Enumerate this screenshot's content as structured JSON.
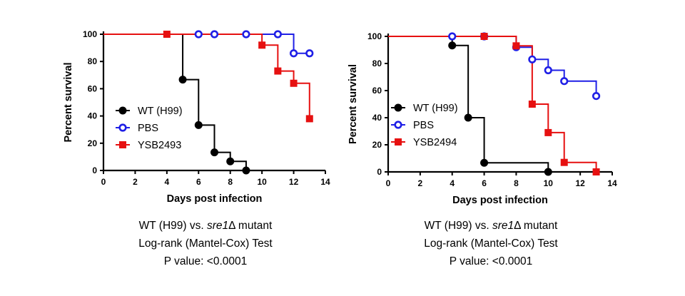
{
  "chart_data": [
    {
      "type": "line",
      "step": true,
      "xlabel": "Days post infection",
      "ylabel": "Percent survival",
      "xlim": [
        0,
        14
      ],
      "ylim": [
        0,
        100
      ],
      "xticks": [
        "0",
        "2",
        "4",
        "6",
        "8",
        "10",
        "12",
        "14"
      ],
      "yticks": [
        "0",
        "20",
        "40",
        "60",
        "80",
        "100"
      ],
      "legend_position": "left-middle",
      "series": [
        {
          "name": "WT (H99)",
          "color": "#000000",
          "marker": "filled-circle",
          "x": [
            0,
            5,
            6,
            7,
            8,
            9
          ],
          "y": [
            100,
            66.7,
            33.3,
            13.3,
            6.7,
            0
          ],
          "marked_points": [
            [
              5,
              66.7
            ],
            [
              6,
              33.3
            ],
            [
              7,
              13.3
            ],
            [
              8,
              6.7
            ],
            [
              9,
              0
            ]
          ]
        },
        {
          "name": "PBS",
          "color": "#1f1fe6",
          "marker": "open-circle",
          "x": [
            0,
            12,
            13
          ],
          "y": [
            100,
            86,
            86
          ],
          "marked_points": [
            [
              6,
              100
            ],
            [
              7,
              100
            ],
            [
              9,
              100
            ],
            [
              11,
              100
            ],
            [
              12,
              86
            ],
            [
              13,
              86
            ]
          ]
        },
        {
          "name": "YSB2493",
          "color": "#e61010",
          "marker": "filled-square",
          "x": [
            0,
            10,
            11,
            12,
            13
          ],
          "y": [
            100,
            92,
            73,
            64,
            38
          ],
          "marked_points": [
            [
              4,
              100
            ],
            [
              10,
              92
            ],
            [
              11,
              73
            ],
            [
              12,
              64
            ],
            [
              13,
              38
            ]
          ]
        }
      ],
      "caption": {
        "line1_prefix": "WT (H99) vs. ",
        "line1_italic": "sre1",
        "line1_suffix": "Δ mutant",
        "line2": "Log-rank (Mantel-Cox) Test",
        "line3": "P value: <0.0001"
      }
    },
    {
      "type": "line",
      "step": true,
      "xlabel": "Days post infection",
      "ylabel": "Percent survival",
      "xlim": [
        0,
        14
      ],
      "ylim": [
        0,
        100
      ],
      "xticks": [
        "0",
        "2",
        "4",
        "6",
        "8",
        "10",
        "12",
        "14"
      ],
      "yticks": [
        "0",
        "20",
        "40",
        "60",
        "80",
        "100"
      ],
      "legend_position": "left-middle",
      "series": [
        {
          "name": "WT (H99)",
          "color": "#000000",
          "marker": "filled-circle",
          "x": [
            0,
            4,
            5,
            6,
            10
          ],
          "y": [
            100,
            93.3,
            40,
            6.7,
            0
          ],
          "marked_points": [
            [
              4,
              93.3
            ],
            [
              5,
              40
            ],
            [
              6,
              6.7
            ],
            [
              10,
              0
            ]
          ]
        },
        {
          "name": "PBS",
          "color": "#1f1fe6",
          "marker": "open-circle",
          "x": [
            0,
            8,
            9,
            10,
            11,
            13
          ],
          "y": [
            100,
            92,
            83,
            75,
            67,
            56
          ],
          "marked_points": [
            [
              4,
              100
            ],
            [
              6,
              100
            ],
            [
              8,
              92
            ],
            [
              9,
              83
            ],
            [
              10,
              75
            ],
            [
              11,
              67
            ],
            [
              13,
              56
            ]
          ]
        },
        {
          "name": "YSB2494",
          "color": "#e61010",
          "marker": "filled-square",
          "x": [
            0,
            8,
            9,
            10,
            11,
            13
          ],
          "y": [
            100,
            93,
            50,
            29,
            7,
            0
          ],
          "marked_points": [
            [
              6,
              100
            ],
            [
              8,
              93
            ],
            [
              9,
              50
            ],
            [
              10,
              29
            ],
            [
              11,
              7
            ],
            [
              13,
              0
            ]
          ]
        }
      ],
      "caption": {
        "line1_prefix": "WT (H99) vs. ",
        "line1_italic": "sre1",
        "line1_suffix": "Δ mutant",
        "line2": "Log-rank (Mantel-Cox) Test",
        "line3": "P value: <0.0001"
      }
    }
  ]
}
